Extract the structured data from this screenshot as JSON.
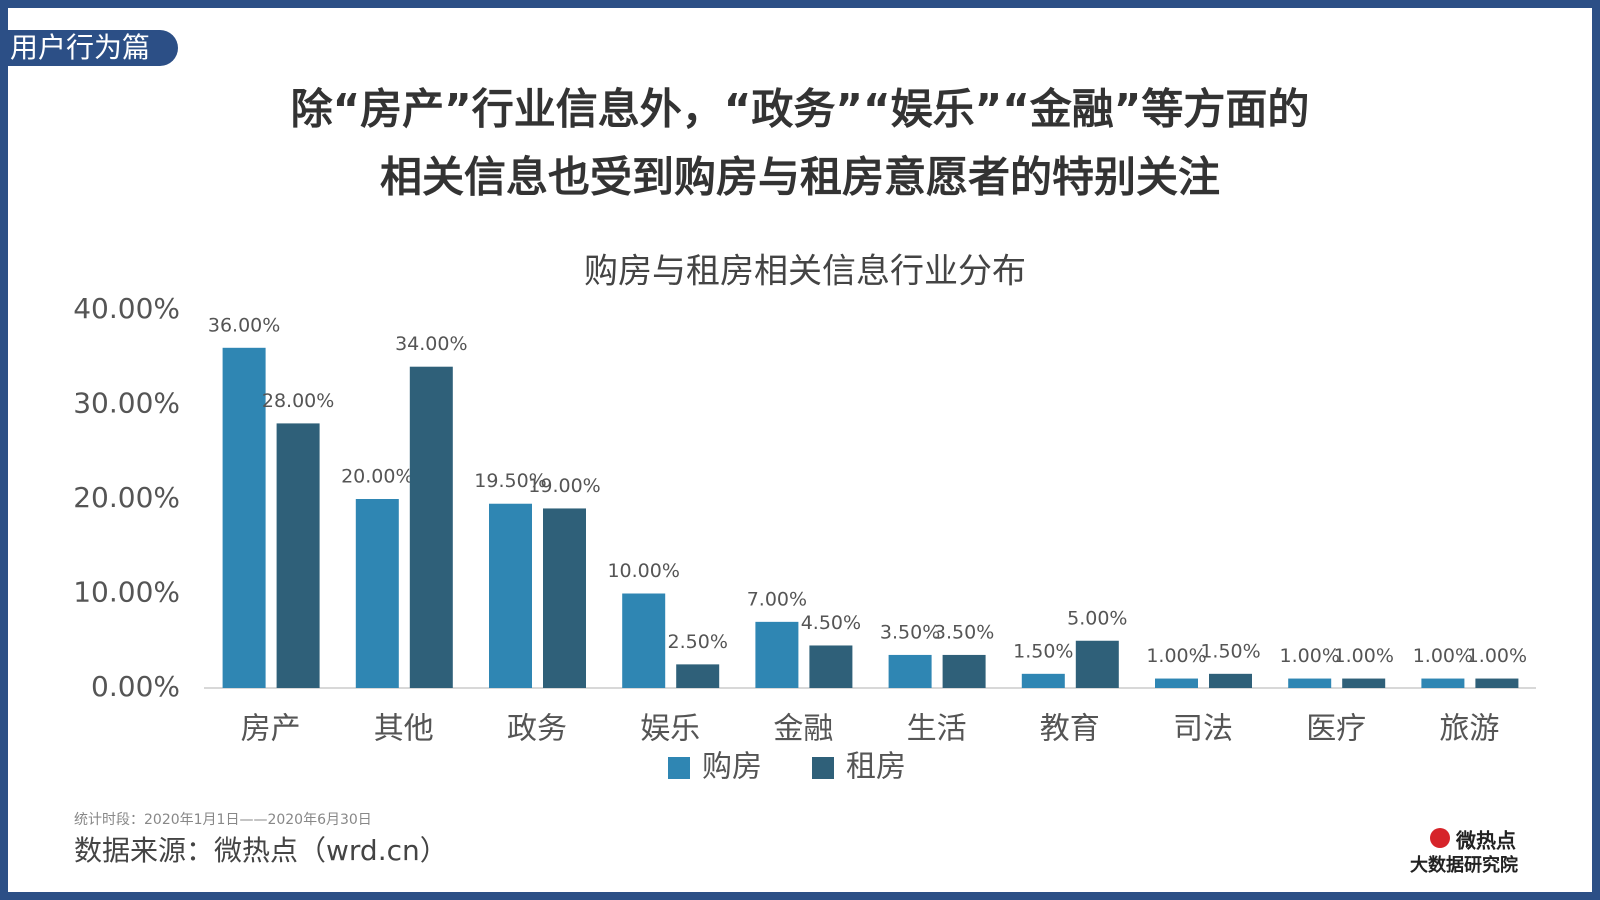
{
  "tag": "用户行为篇",
  "headline": [
    "除“房产”行业信息外，“政务”“娱乐”“金融”等方面的",
    "相关信息也受到购房与租房意愿者的特别关注"
  ],
  "chart_data": {
    "type": "bar",
    "title": "购房与租房相关信息行业分布",
    "categories": [
      "房产",
      "其他",
      "政务",
      "娱乐",
      "金融",
      "生活",
      "教育",
      "司法",
      "医疗",
      "旅游"
    ],
    "series": [
      {
        "name": "购房",
        "color": "#2f86b3",
        "values": [
          36,
          20,
          19.5,
          10,
          7,
          3.5,
          1.5,
          1,
          1,
          1
        ],
        "value_labels": [
          "36.00%",
          "20.00%",
          "19.50%",
          "10.00%",
          "7.00%",
          "3.50%",
          "1.50%",
          "1.00%",
          "1.00%",
          "1.00%"
        ]
      },
      {
        "name": "租房",
        "color": "#2f6079",
        "values": [
          28,
          34,
          19,
          2.5,
          4.5,
          3.5,
          5,
          1.5,
          1,
          1
        ],
        "value_labels": [
          "28.00%",
          "34.00%",
          "19.00%",
          "2.50%",
          "4.50%",
          "3.50%",
          "5.00%",
          "1.50%",
          "1.00%",
          "1.00%"
        ]
      }
    ],
    "ylim": [
      0,
      40
    ],
    "yticks": [
      {
        "value": 0,
        "label": "0.00%"
      },
      {
        "value": 10,
        "label": "10.00%"
      },
      {
        "value": 20,
        "label": "20.00%"
      },
      {
        "value": 30,
        "label": "30.00%"
      },
      {
        "value": 40,
        "label": "40.00%"
      }
    ],
    "grid": false,
    "legend": "bottom"
  },
  "footer": {
    "period": "统计时段：2020年1月1日——2020年6月30日",
    "source": "数据来源：微热点（wrd.cn）"
  },
  "logo": {
    "name": "微热点",
    "subtitle": "大数据研究院"
  }
}
